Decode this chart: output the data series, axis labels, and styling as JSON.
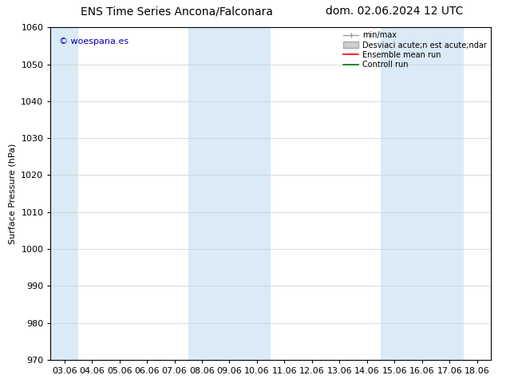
{
  "title_left": "ENS Time Series Ancona/Falconara",
  "title_right": "dom. 02.06.2024 12 UTC",
  "ylabel": "Surface Pressure (hPa)",
  "ylim": [
    970,
    1060
  ],
  "yticks": [
    970,
    980,
    990,
    1000,
    1010,
    1020,
    1030,
    1040,
    1050,
    1060
  ],
  "x_labels": [
    "03.06",
    "04.06",
    "05.06",
    "06.06",
    "07.06",
    "08.06",
    "09.06",
    "10.06",
    "11.06",
    "12.06",
    "13.06",
    "14.06",
    "15.06",
    "16.06",
    "17.06",
    "18.06"
  ],
  "shaded_cols": [
    0,
    5,
    6,
    7,
    12,
    13,
    14
  ],
  "shaded_color": "#daeaf7",
  "background_color": "#ffffff",
  "watermark_text": "© woespana.es",
  "watermark_color": "#0000bb",
  "legend_labels": [
    "min/max",
    "Desviaci acute;n est acute;ndar",
    "Ensemble mean run",
    "Controll run"
  ],
  "legend_colors": [
    "#999999",
    "#cccccc",
    "#ff0000",
    "#007700"
  ],
  "grid_color": "#cccccc",
  "tick_color": "#000000",
  "title_fontsize": 10,
  "axis_fontsize": 8,
  "tick_fontsize": 8,
  "watermark_fontsize": 8,
  "legend_fontsize": 7
}
